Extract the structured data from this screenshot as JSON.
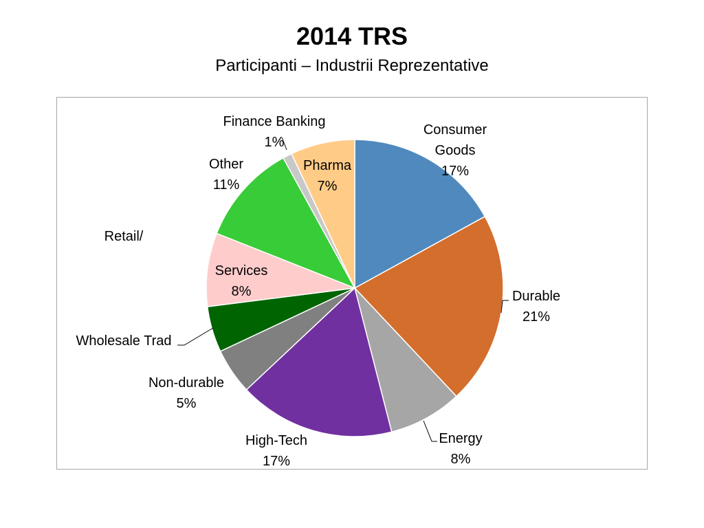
{
  "title": "2014 TRS",
  "subtitle": "Participanti – Industrii Reprezentative",
  "chart_data": {
    "type": "pie",
    "title": "2014 TRS",
    "subtitle": "Participanti – Industrii Reprezentative",
    "start_angle_deg": 0,
    "direction": "clockwise",
    "slices": [
      {
        "label_lines": [
          "Consumer",
          "Goods",
          "17%"
        ],
        "value": 17,
        "color": "#4f89bd"
      },
      {
        "label_lines": [
          "Durable",
          "21%"
        ],
        "value": 21,
        "color": "#d46e2c"
      },
      {
        "label_lines": [
          "Energy",
          "8%"
        ],
        "value": 8,
        "color": "#a6a6a6"
      },
      {
        "label_lines": [
          "High-Tech",
          "17%"
        ],
        "value": 17,
        "color": "#7030a0"
      },
      {
        "label_lines": [
          "Non-durable",
          "5%"
        ],
        "value": 5,
        "color": "#808080"
      },
      {
        "label_lines": [
          "Wholesale Trad"
        ],
        "value": 5,
        "color": "#006400"
      },
      {
        "label_lines": [
          "Services",
          "8%"
        ],
        "value": 8,
        "color": "#ffcccc"
      },
      {
        "label_lines": [
          "Other",
          "11%"
        ],
        "value": 11,
        "color": "#38cc38"
      },
      {
        "label_lines": [
          "Finance Banking",
          "1%"
        ],
        "value": 1,
        "color": "#c8c8c8"
      },
      {
        "label_lines": [
          "Pharma",
          "7%"
        ],
        "value": 7,
        "color": "#ffcc88"
      }
    ],
    "extra_labels": [
      {
        "text": "Retail/"
      }
    ]
  }
}
